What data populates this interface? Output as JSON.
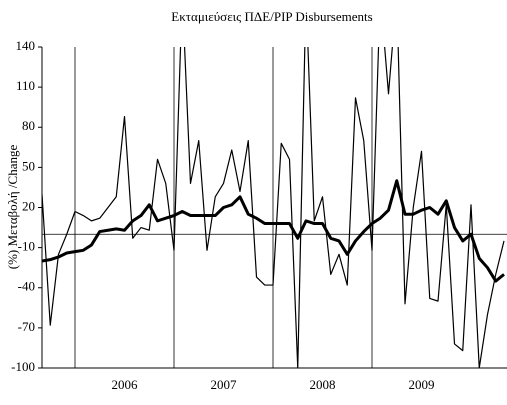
{
  "chart_data": {
    "type": "line",
    "title": "Εκταμιεύσεις ΠΔΕ/PIP Disbursements",
    "ylabel": "(%) Μεταβολή /Change",
    "categories": [
      null,
      null,
      null,
      null,
      null,
      null,
      null,
      null,
      null,
      null,
      "2006",
      null,
      null,
      null,
      null,
      null,
      null,
      null,
      null,
      null,
      null,
      null,
      "2007",
      null,
      null,
      null,
      null,
      null,
      null,
      null,
      null,
      null,
      null,
      null,
      "2008",
      null,
      null,
      null,
      null,
      null,
      null,
      null,
      null,
      null,
      null,
      null,
      "2009",
      null,
      null,
      null,
      null,
      null,
      null,
      null,
      null,
      null,
      null
    ],
    "series": [
      {
        "color": "#000000",
        "line_width": 1.2,
        "values": [
          30,
          -68,
          -15,
          0,
          17,
          14,
          10,
          12,
          20,
          28,
          88,
          -3,
          5,
          3,
          56,
          38,
          -12,
          180,
          38,
          70,
          -12,
          28,
          38,
          63,
          32,
          70,
          -32,
          -38,
          -38,
          68,
          56,
          -100,
          180,
          10,
          28,
          -30,
          -15,
          -38,
          102,
          70,
          -12,
          180,
          105,
          180,
          -52,
          20,
          62,
          -48,
          -50,
          22,
          -82,
          -87,
          22,
          -100,
          -60,
          -30,
          -5
        ]
      },
      {
        "color": "#000000",
        "line_width": 3,
        "values": [
          -20,
          -19,
          -17,
          -14,
          -13,
          -12,
          -8,
          2,
          3,
          4,
          3,
          10,
          14,
          22,
          10,
          12,
          14,
          17,
          14,
          14,
          14,
          14,
          20,
          22,
          28,
          15,
          12,
          8,
          8,
          8,
          8,
          -3,
          10,
          8,
          8,
          -3,
          -5,
          -15,
          -5,
          2,
          8,
          12,
          18,
          40,
          15,
          15,
          18,
          20,
          15,
          25,
          5,
          -5,
          0,
          -18,
          -25,
          -35,
          -30
        ]
      }
    ],
    "reference_line": 0,
    "ylim": [
      -100,
      140
    ],
    "yticks": [
      -100,
      -70,
      -40,
      -10,
      20,
      50,
      80,
      110,
      140
    ]
  }
}
